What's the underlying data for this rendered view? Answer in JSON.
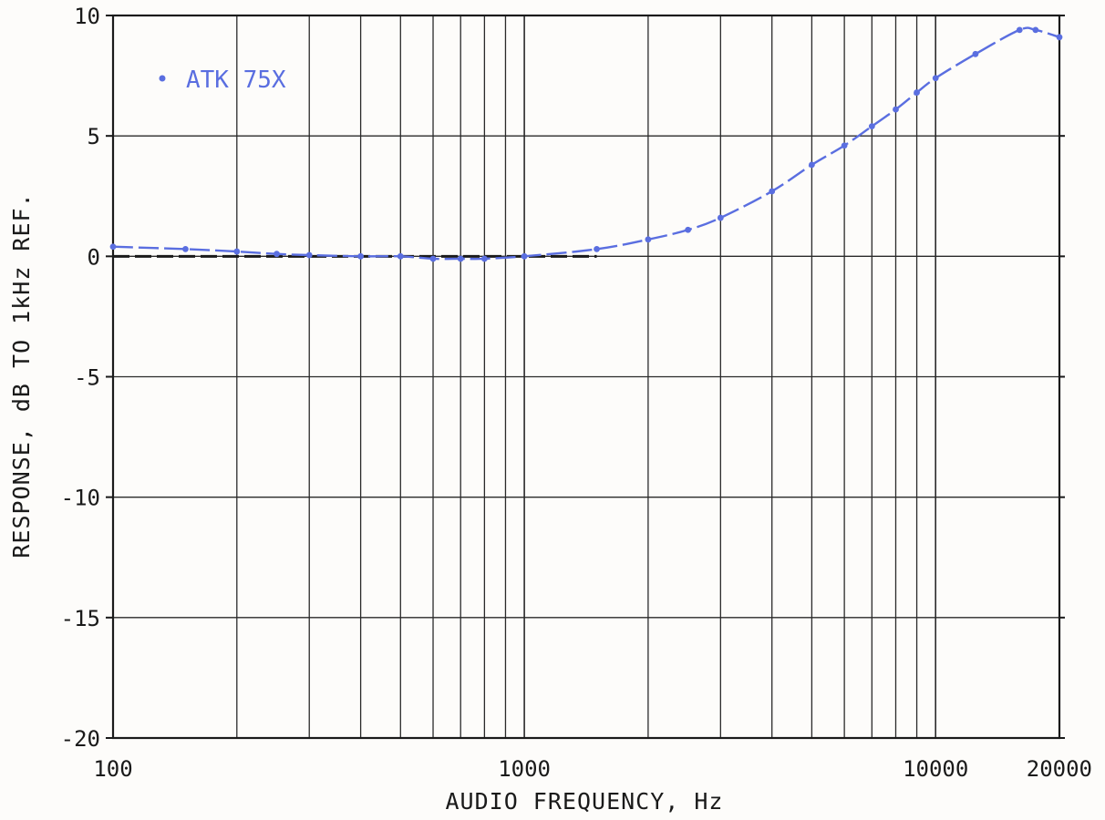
{
  "chart_data": {
    "type": "line",
    "xlabel": "AUDIO FREQUENCY, Hz",
    "ylabel": "RESPONSE, dB TO 1kHz REF.",
    "x_scale": "log",
    "xlim": [
      100,
      20000
    ],
    "ylim": [
      -20,
      10
    ],
    "x_tick_labels": [
      "100",
      "1000",
      "10000",
      "20000"
    ],
    "x_tick_values": [
      100,
      1000,
      10000,
      20000
    ],
    "y_tick_labels": [
      "10",
      "5",
      "0",
      "-5",
      "-10",
      "-15",
      "-20"
    ],
    "y_tick_values": [
      10,
      5,
      0,
      -5,
      -10,
      -15,
      -20
    ],
    "grid": true,
    "legend_position": "top-left",
    "series": [
      {
        "name": "ATK 75X",
        "color": "#5a6ee0",
        "marker": "dot",
        "x": [
          100,
          150,
          200,
          250,
          300,
          400,
          500,
          600,
          700,
          800,
          1000,
          1500,
          2000,
          2500,
          3000,
          4000,
          5000,
          6000,
          7000,
          8000,
          9000,
          10000,
          12500,
          16000,
          17500,
          20000
        ],
        "y": [
          0.4,
          0.3,
          0.2,
          0.1,
          0.05,
          0.0,
          0.0,
          -0.1,
          -0.1,
          -0.1,
          0.0,
          0.3,
          0.7,
          1.1,
          1.6,
          2.7,
          3.8,
          4.6,
          5.4,
          6.1,
          6.8,
          7.4,
          8.4,
          9.4,
          9.4,
          9.1
        ]
      }
    ],
    "reference_line": {
      "y": 0,
      "style": "dashed"
    }
  }
}
